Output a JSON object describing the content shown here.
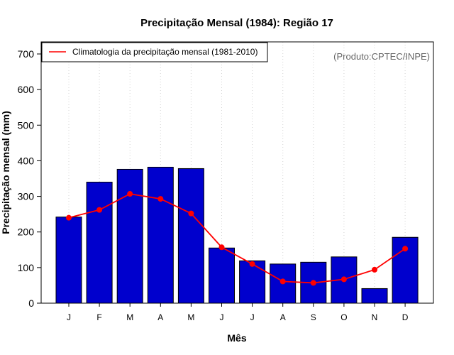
{
  "chart_data": {
    "type": "bar",
    "title": "Precipitação Mensal (1984): Região 17",
    "xlabel": "Mês",
    "ylabel": "Precipitação mensal (mm)",
    "ylim": [
      0,
      700
    ],
    "yticks": [
      0,
      100,
      200,
      300,
      400,
      500,
      600,
      700
    ],
    "categories": [
      "J",
      "F",
      "M",
      "A",
      "M",
      "J",
      "J",
      "A",
      "S",
      "O",
      "N",
      "D"
    ],
    "series": [
      {
        "name": "Precipitação mensal (1984)",
        "kind": "bar",
        "color": "#0000cd",
        "values": [
          242,
          340,
          376,
          382,
          378,
          155,
          119,
          110,
          115,
          130,
          41,
          185
        ]
      },
      {
        "name": "Climatologia da precipitação mensal (1981-2010)",
        "kind": "line",
        "color": "#ff0000",
        "values": [
          240,
          262,
          307,
          293,
          252,
          157,
          110,
          61,
          57,
          67,
          94,
          153
        ]
      }
    ],
    "legend": {
      "position": "top-left",
      "entries": [
        "Climatologia da precipitação mensal (1981-2010)"
      ]
    },
    "credit": "(Produto:CPTEC/INPE)",
    "grid": "vertical dotted"
  }
}
